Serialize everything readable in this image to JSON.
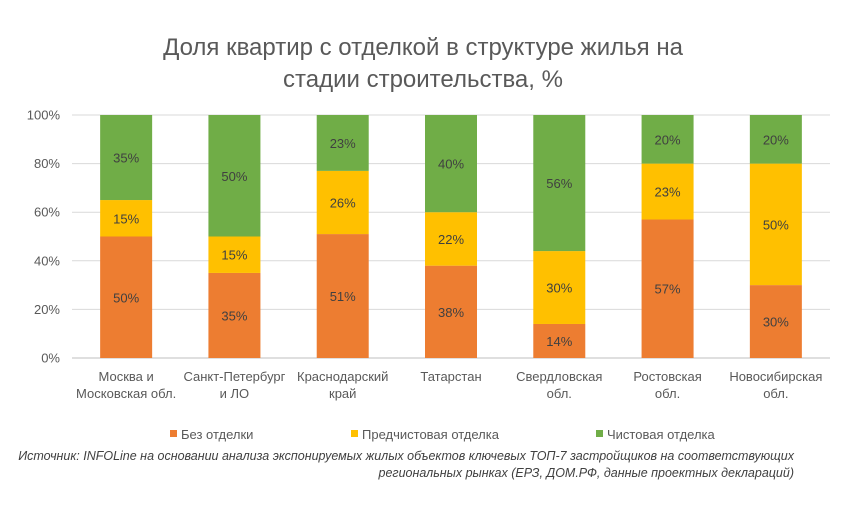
{
  "chart_data": {
    "type": "bar",
    "stacked": true,
    "title_lines": [
      "Доля квартир с отделкой в структуре жилья на",
      "стадии строительства, %"
    ],
    "categories": [
      [
        "Москва и",
        "Московская обл."
      ],
      [
        "Санкт-Петербург",
        "и ЛО"
      ],
      [
        "Краснодарский",
        "край"
      ],
      [
        "Татарстан"
      ],
      [
        "Свердловская",
        "обл."
      ],
      [
        "Ростовская",
        "обл."
      ],
      [
        "Новосибирская",
        "обл."
      ]
    ],
    "series": [
      {
        "name": "Без отделки",
        "color": "#ED7D31",
        "values": [
          50,
          35,
          51,
          38,
          14,
          57,
          30
        ]
      },
      {
        "name": "Предчистовая отделка",
        "color": "#FFC000",
        "values": [
          15,
          15,
          26,
          22,
          30,
          23,
          50
        ]
      },
      {
        "name": "Чистовая отделка",
        "color": "#70AD47",
        "values": [
          35,
          50,
          23,
          40,
          56,
          20,
          20
        ]
      }
    ],
    "value_suffix": "%",
    "ylim": [
      0,
      100
    ],
    "yticks": [
      "0%",
      "20%",
      "40%",
      "60%",
      "80%",
      "100%"
    ],
    "grid": true,
    "legend_position": "bottom"
  },
  "source_note_lines": [
    "Источник: INFOLine на основании анализа экспонируемых жилых объектов ключевых ТОП-7 застройщиков на соответствующих",
    "региональных рынках (ЕРЗ, ДОМ.РФ, данные проектных деклараций)"
  ]
}
